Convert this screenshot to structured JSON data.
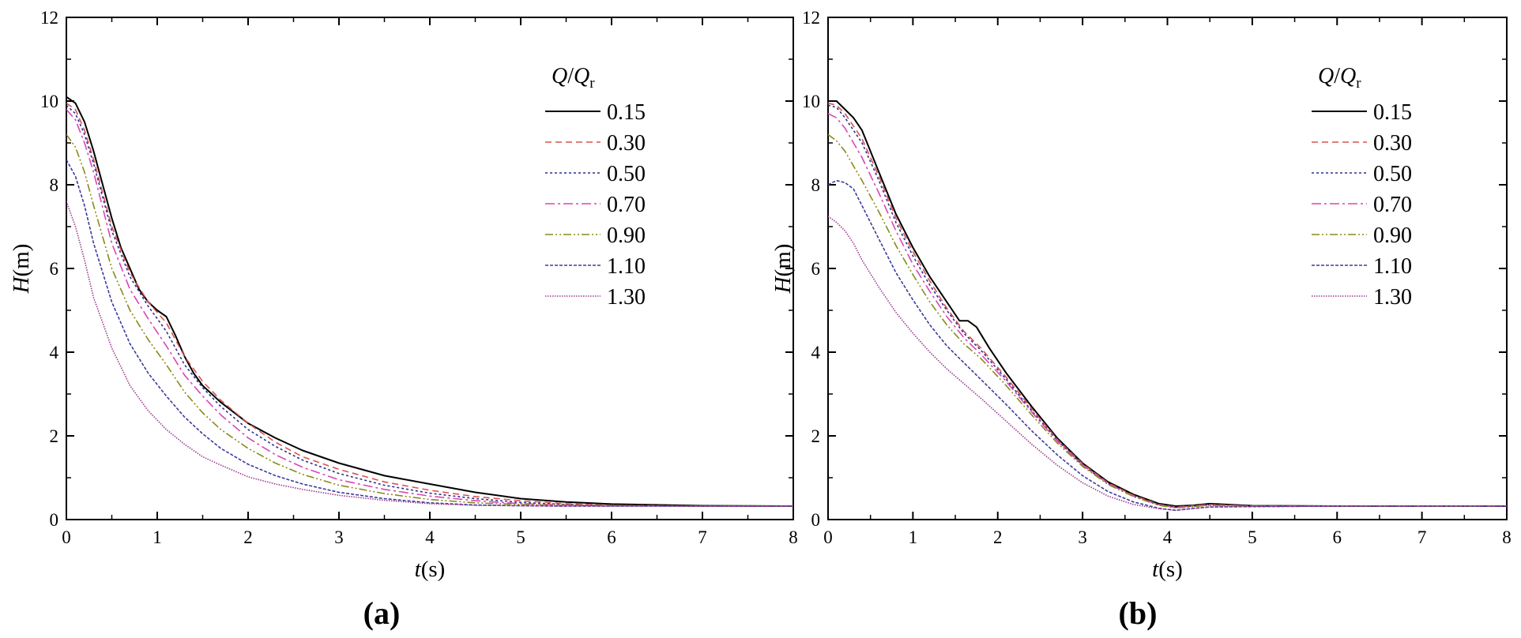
{
  "chart_data": [
    {
      "type": "line",
      "panel_label": "(a)",
      "xlabel_italic": "t",
      "xlabel_unit": "(s)",
      "ylabel_italic": "H",
      "ylabel_unit": "(m)",
      "xlim": [
        0,
        8
      ],
      "ylim": [
        0,
        12
      ],
      "xticks": [
        "0",
        "1",
        "2",
        "3",
        "4",
        "5",
        "6",
        "7",
        "8"
      ],
      "yticks": [
        "0",
        "2",
        "4",
        "6",
        "8",
        "10",
        "12"
      ],
      "legend": {
        "title_q": "Q",
        "title_sep": "/",
        "title_qr": "Q",
        "title_sub": "r",
        "placement": "top-right"
      },
      "series": [
        {
          "name": "0.15",
          "color": "#000000",
          "dash": "solid",
          "x": [
            0,
            0.1,
            0.2,
            0.3,
            0.4,
            0.5,
            0.6,
            0.7,
            0.8,
            0.9,
            1.0,
            1.1,
            1.2,
            1.3,
            1.4,
            1.5,
            1.7,
            2.0,
            2.3,
            2.6,
            3.0,
            3.5,
            4.0,
            4.5,
            5.0,
            5.5,
            6.0,
            7.0,
            8.0
          ],
          "y": [
            10.1,
            9.95,
            9.5,
            8.8,
            8.0,
            7.2,
            6.5,
            6.0,
            5.5,
            5.2,
            5.0,
            4.85,
            4.4,
            3.9,
            3.5,
            3.2,
            2.8,
            2.3,
            1.95,
            1.65,
            1.35,
            1.05,
            0.85,
            0.65,
            0.5,
            0.42,
            0.37,
            0.33,
            0.32
          ]
        },
        {
          "name": "0.30",
          "color": "#d9534f",
          "dash": "8,5",
          "x": [
            0,
            0.1,
            0.2,
            0.3,
            0.5,
            0.7,
            0.9,
            1.1,
            1.3,
            1.5,
            1.7,
            2.0,
            2.3,
            2.6,
            3.0,
            3.5,
            4.0,
            4.5,
            5.0,
            5.5,
            6.0,
            7.0,
            8.0
          ],
          "y": [
            9.95,
            9.8,
            9.3,
            8.6,
            7.0,
            5.9,
            5.2,
            4.7,
            3.9,
            3.3,
            2.85,
            2.3,
            1.85,
            1.5,
            1.2,
            0.9,
            0.7,
            0.55,
            0.45,
            0.38,
            0.34,
            0.32,
            0.32
          ]
        },
        {
          "name": "0.50",
          "color": "#2b2f8f",
          "dash": "3,3",
          "x": [
            0,
            0.1,
            0.2,
            0.3,
            0.5,
            0.7,
            0.9,
            1.1,
            1.3,
            1.5,
            1.7,
            2.0,
            2.3,
            2.6,
            3.0,
            3.5,
            4.0,
            4.5,
            5.0,
            5.5,
            6.0,
            7.0,
            8.0
          ],
          "y": [
            9.9,
            9.7,
            9.2,
            8.5,
            6.9,
            5.8,
            5.1,
            4.5,
            3.7,
            3.15,
            2.7,
            2.15,
            1.75,
            1.42,
            1.1,
            0.82,
            0.63,
            0.5,
            0.41,
            0.36,
            0.33,
            0.32,
            0.32
          ]
        },
        {
          "name": "0.70",
          "color": "#d946b5",
          "dash": "12,4,3,4",
          "x": [
            0,
            0.1,
            0.2,
            0.3,
            0.5,
            0.7,
            0.9,
            1.1,
            1.3,
            1.5,
            1.7,
            2.0,
            2.3,
            2.6,
            3.0,
            3.5,
            4.0,
            4.5,
            5.0,
            5.5,
            6.0,
            7.0,
            8.0
          ],
          "y": [
            9.8,
            9.55,
            9.0,
            8.3,
            6.6,
            5.5,
            4.8,
            4.15,
            3.45,
            2.95,
            2.5,
            1.95,
            1.55,
            1.25,
            0.95,
            0.72,
            0.56,
            0.45,
            0.38,
            0.35,
            0.33,
            0.32,
            0.32
          ]
        },
        {
          "name": "0.90",
          "color": "#8a8a1a",
          "dash": "10,3,2,3,2,3",
          "x": [
            0,
            0.1,
            0.2,
            0.3,
            0.5,
            0.7,
            0.9,
            1.1,
            1.3,
            1.5,
            1.7,
            2.0,
            2.3,
            2.6,
            3.0,
            3.5,
            4.0,
            4.5,
            5.0,
            5.5,
            6.0,
            7.0,
            8.0
          ],
          "y": [
            9.2,
            8.9,
            8.3,
            7.5,
            6.0,
            5.0,
            4.3,
            3.7,
            3.05,
            2.55,
            2.15,
            1.7,
            1.35,
            1.08,
            0.82,
            0.62,
            0.48,
            0.4,
            0.36,
            0.34,
            0.33,
            0.32,
            0.32
          ]
        },
        {
          "name": "1.10",
          "color": "#3a3a9e",
          "dash": "4,2",
          "x": [
            0,
            0.1,
            0.2,
            0.3,
            0.5,
            0.7,
            0.9,
            1.1,
            1.3,
            1.5,
            1.7,
            2.0,
            2.3,
            2.6,
            3.0,
            3.5,
            4.0,
            4.5,
            5.0,
            5.5,
            6.0,
            7.0,
            8.0
          ],
          "y": [
            8.6,
            8.2,
            7.5,
            6.6,
            5.2,
            4.2,
            3.5,
            2.95,
            2.45,
            2.05,
            1.7,
            1.32,
            1.05,
            0.85,
            0.65,
            0.5,
            0.4,
            0.35,
            0.33,
            0.32,
            0.32,
            0.32,
            0.32
          ]
        },
        {
          "name": "1.30",
          "color": "#9b3b8f",
          "dash": "1.5,1.5",
          "x": [
            0,
            0.1,
            0.2,
            0.3,
            0.5,
            0.7,
            0.9,
            1.1,
            1.3,
            1.5,
            1.7,
            2.0,
            2.3,
            2.6,
            3.0,
            3.5,
            4.0,
            4.5,
            5.0,
            5.5,
            6.0,
            7.0,
            8.0
          ],
          "y": [
            7.6,
            7.0,
            6.2,
            5.3,
            4.1,
            3.2,
            2.6,
            2.15,
            1.8,
            1.5,
            1.3,
            1.02,
            0.85,
            0.72,
            0.58,
            0.46,
            0.38,
            0.34,
            0.33,
            0.32,
            0.32,
            0.32,
            0.32
          ]
        }
      ]
    },
    {
      "type": "line",
      "panel_label": "(b)",
      "xlabel_italic": "t",
      "xlabel_unit": "(s)",
      "ylabel_italic": "H",
      "ylabel_unit": "(m)",
      "xlim": [
        0,
        8
      ],
      "ylim": [
        0,
        12
      ],
      "xticks": [
        "0",
        "1",
        "2",
        "3",
        "4",
        "5",
        "6",
        "7",
        "8"
      ],
      "yticks": [
        "0",
        "2",
        "4",
        "6",
        "8",
        "10",
        "12"
      ],
      "legend": {
        "title_q": "Q",
        "title_sep": "/",
        "title_qr": "Q",
        "title_sub": "r",
        "placement": "top-right"
      },
      "series": [
        {
          "name": "0.15",
          "color": "#000000",
          "dash": "solid",
          "x": [
            0,
            0.1,
            0.2,
            0.3,
            0.4,
            0.6,
            0.8,
            1.0,
            1.2,
            1.4,
            1.55,
            1.65,
            1.75,
            1.9,
            2.1,
            2.4,
            2.7,
            3.0,
            3.3,
            3.6,
            3.9,
            4.1,
            4.3,
            4.5,
            5.0,
            6.0,
            7.0,
            8.0
          ],
          "y": [
            10.0,
            10.0,
            9.8,
            9.6,
            9.3,
            8.3,
            7.3,
            6.5,
            5.8,
            5.2,
            4.75,
            4.75,
            4.6,
            4.1,
            3.5,
            2.7,
            1.95,
            1.35,
            0.9,
            0.6,
            0.38,
            0.32,
            0.34,
            0.38,
            0.33,
            0.32,
            0.32,
            0.32
          ]
        },
        {
          "name": "0.30",
          "color": "#d9534f",
          "dash": "8,5",
          "x": [
            0,
            0.1,
            0.2,
            0.3,
            0.4,
            0.6,
            0.8,
            1.0,
            1.2,
            1.4,
            1.6,
            1.8,
            2.1,
            2.4,
            2.7,
            3.0,
            3.3,
            3.6,
            3.9,
            4.1,
            4.3,
            4.5,
            5.0,
            6.0,
            7.0,
            8.0
          ],
          "y": [
            9.95,
            9.9,
            9.7,
            9.4,
            9.1,
            8.2,
            7.2,
            6.4,
            5.7,
            5.05,
            4.5,
            4.1,
            3.4,
            2.65,
            1.92,
            1.33,
            0.88,
            0.58,
            0.36,
            0.3,
            0.33,
            0.36,
            0.32,
            0.32,
            0.32,
            0.32
          ]
        },
        {
          "name": "0.50",
          "color": "#2b2f8f",
          "dash": "3,3",
          "x": [
            0,
            0.1,
            0.2,
            0.3,
            0.4,
            0.6,
            0.8,
            1.0,
            1.2,
            1.4,
            1.6,
            1.8,
            2.1,
            2.4,
            2.7,
            3.0,
            3.3,
            3.6,
            3.9,
            4.1,
            4.3,
            4.5,
            5.0,
            6.0,
            7.0,
            8.0
          ],
          "y": [
            9.9,
            9.85,
            9.6,
            9.3,
            9.0,
            8.1,
            7.1,
            6.3,
            5.6,
            5.0,
            4.45,
            4.05,
            3.35,
            2.6,
            1.9,
            1.3,
            0.86,
            0.56,
            0.35,
            0.29,
            0.32,
            0.35,
            0.32,
            0.32,
            0.32,
            0.32
          ]
        },
        {
          "name": "0.70",
          "color": "#d946b5",
          "dash": "12,4,3,4",
          "x": [
            0,
            0.1,
            0.2,
            0.3,
            0.4,
            0.6,
            0.8,
            1.0,
            1.2,
            1.4,
            1.6,
            1.8,
            2.1,
            2.4,
            2.7,
            3.0,
            3.3,
            3.6,
            3.9,
            4.1,
            4.3,
            4.5,
            5.0,
            6.0,
            7.0,
            8.0
          ],
          "y": [
            9.7,
            9.6,
            9.35,
            9.0,
            8.65,
            7.8,
            6.9,
            6.1,
            5.45,
            4.85,
            4.35,
            3.95,
            3.3,
            2.57,
            1.88,
            1.3,
            0.86,
            0.56,
            0.35,
            0.29,
            0.32,
            0.35,
            0.32,
            0.32,
            0.32,
            0.32
          ]
        },
        {
          "name": "0.90",
          "color": "#8a8a1a",
          "dash": "10,3,2,3,2,3",
          "x": [
            0,
            0.1,
            0.2,
            0.3,
            0.4,
            0.6,
            0.8,
            1.0,
            1.2,
            1.4,
            1.6,
            1.8,
            2.1,
            2.4,
            2.7,
            3.0,
            3.3,
            3.6,
            3.9,
            4.1,
            4.3,
            4.5,
            5.0,
            6.0,
            7.0,
            8.0
          ],
          "y": [
            9.2,
            9.05,
            8.8,
            8.45,
            8.1,
            7.35,
            6.55,
            5.85,
            5.2,
            4.65,
            4.2,
            3.85,
            3.2,
            2.5,
            1.83,
            1.27,
            0.84,
            0.55,
            0.34,
            0.28,
            0.31,
            0.34,
            0.32,
            0.32,
            0.32,
            0.32
          ]
        },
        {
          "name": "1.10",
          "color": "#3a3a9e",
          "dash": "4,2",
          "x": [
            0,
            0.1,
            0.2,
            0.3,
            0.4,
            0.6,
            0.8,
            1.0,
            1.2,
            1.4,
            1.6,
            1.8,
            2.1,
            2.4,
            2.7,
            3.0,
            3.3,
            3.6,
            3.9,
            4.1,
            4.3,
            4.5,
            5.0,
            6.0,
            7.0,
            8.0
          ],
          "y": [
            8.0,
            8.1,
            8.05,
            7.9,
            7.5,
            6.7,
            5.9,
            5.25,
            4.65,
            4.15,
            3.75,
            3.35,
            2.75,
            2.12,
            1.55,
            1.05,
            0.67,
            0.42,
            0.27,
            0.22,
            0.27,
            0.3,
            0.31,
            0.32,
            0.32,
            0.32
          ]
        },
        {
          "name": "1.30",
          "color": "#9b3b8f",
          "dash": "1.5,1.5",
          "x": [
            0,
            0.1,
            0.2,
            0.3,
            0.4,
            0.6,
            0.8,
            1.0,
            1.2,
            1.4,
            1.6,
            1.8,
            2.1,
            2.4,
            2.7,
            3.0,
            3.3,
            3.6,
            3.9,
            4.1,
            4.3,
            4.5,
            5.0,
            6.0,
            7.0,
            8.0
          ],
          "y": [
            7.25,
            7.1,
            6.9,
            6.6,
            6.2,
            5.55,
            4.95,
            4.45,
            4.0,
            3.6,
            3.25,
            2.9,
            2.35,
            1.8,
            1.3,
            0.88,
            0.56,
            0.36,
            0.26,
            0.22,
            0.26,
            0.3,
            0.31,
            0.32,
            0.32,
            0.32
          ]
        }
      ]
    }
  ]
}
